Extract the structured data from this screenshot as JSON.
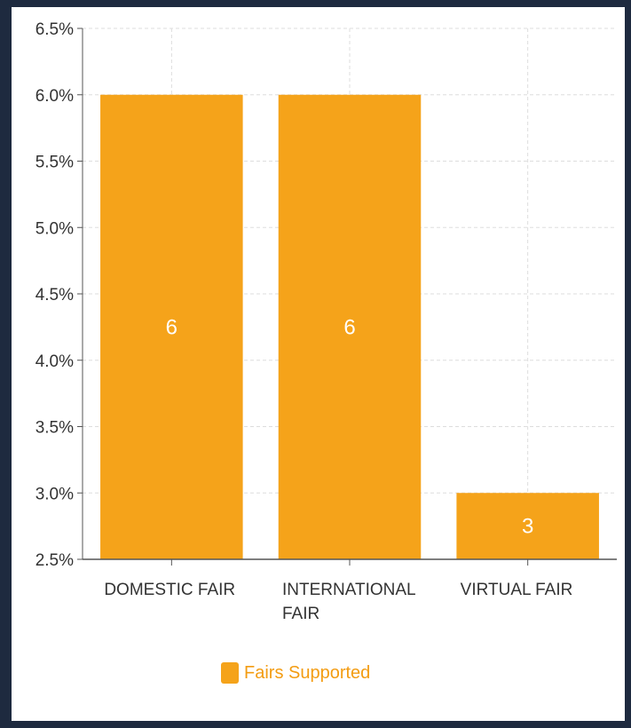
{
  "chart_data": {
    "type": "bar",
    "categories": [
      "DOMESTIC FAIR",
      "INTERNATIONAL FAIR",
      "VIRTUAL FAIR"
    ],
    "category_lines": [
      [
        "DOMESTIC FAIR"
      ],
      [
        "INTERNATIONAL",
        "FAIR"
      ],
      [
        "VIRTUAL FAIR"
      ]
    ],
    "series": [
      {
        "name": "Fairs Supported",
        "values": [
          6.0,
          6.0,
          3.0
        ],
        "data_labels": [
          "6",
          "6",
          "3"
        ]
      }
    ],
    "ylim": [
      2.5,
      6.5
    ],
    "yticks": [
      6.5,
      6.0,
      5.5,
      5.0,
      4.5,
      4.0,
      3.5,
      3.0,
      2.5
    ],
    "ytick_labels": [
      "6.5%",
      "6.0%",
      "5.5%",
      "5.0%",
      "4.5%",
      "4.0%",
      "3.5%",
      "3.0%",
      "2.5%"
    ],
    "grid": true,
    "legend_position": "bottom-center"
  },
  "colors": {
    "bar": "#f5a31a",
    "legend_text": "#f39c12",
    "grid": "#dddddd",
    "axis": "#555555",
    "background_frame": "#1e2a3f"
  }
}
